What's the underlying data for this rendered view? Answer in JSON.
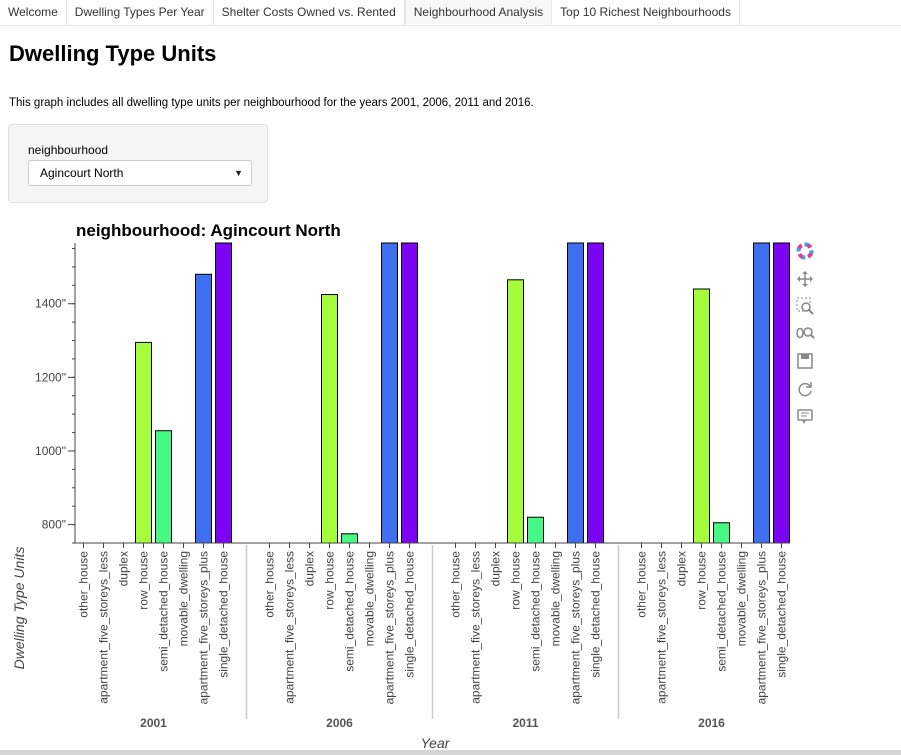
{
  "tabs": [
    {
      "label": "Welcome"
    },
    {
      "label": "Dwelling Types Per Year"
    },
    {
      "label": "Shelter Costs Owned vs. Rented"
    },
    {
      "label": "Neighbourhood Analysis",
      "active": true
    },
    {
      "label": "Top 10 Richest Neighbourhoods"
    }
  ],
  "page_title": "Dwelling Type Units",
  "description": "This graph includes all dwelling type units per neighbourhood for the years 2001, 2006, 2011 and 2016.",
  "widget": {
    "label": "neighbourhood",
    "selected": "Agincourt North"
  },
  "toolbar_icons": [
    "bokeh-logo-icon",
    "pan-icon",
    "box-zoom-icon",
    "wheel-zoom-icon",
    "save-icon",
    "reset-icon",
    "hover-icon"
  ],
  "chart_data": {
    "type": "bar",
    "title": "neighbourhood: Agincourt North",
    "xlabel": "Year",
    "ylabel": "Dwelling Type Units",
    "ylim": [
      750,
      1565
    ],
    "yticks": [
      800,
      1000,
      1200,
      1400
    ],
    "ytick_labels": [
      "800\"",
      "1000\"",
      "1200\"",
      "1400\""
    ],
    "grid": false,
    "groups": [
      "2001",
      "2006",
      "2011",
      "2016"
    ],
    "categories": [
      "other_house",
      "apartment_five_storeys_less",
      "duplex",
      "row_house",
      "semi_detached_house",
      "movable_dwelling",
      "apartment_five_storeys_plus",
      "single_detached_house"
    ],
    "colors": [
      "#30123b",
      "#4145ab",
      "#4675ed",
      "#a4fc3b",
      "#46f884",
      "#e1dd37",
      "#3e6ff0",
      "#7a04f3"
    ],
    "series": [
      {
        "group": "2001",
        "values": [
          750,
          750,
          750,
          1295,
          1055,
          750,
          1480,
          1565
        ]
      },
      {
        "group": "2006",
        "values": [
          750,
          750,
          750,
          1425,
          775,
          750,
          1565,
          1565
        ]
      },
      {
        "group": "2011",
        "values": [
          750,
          750,
          750,
          1465,
          820,
          750,
          1565,
          1565
        ]
      },
      {
        "group": "2016",
        "values": [
          750,
          750,
          750,
          1440,
          805,
          750,
          1565,
          1565
        ]
      }
    ]
  }
}
